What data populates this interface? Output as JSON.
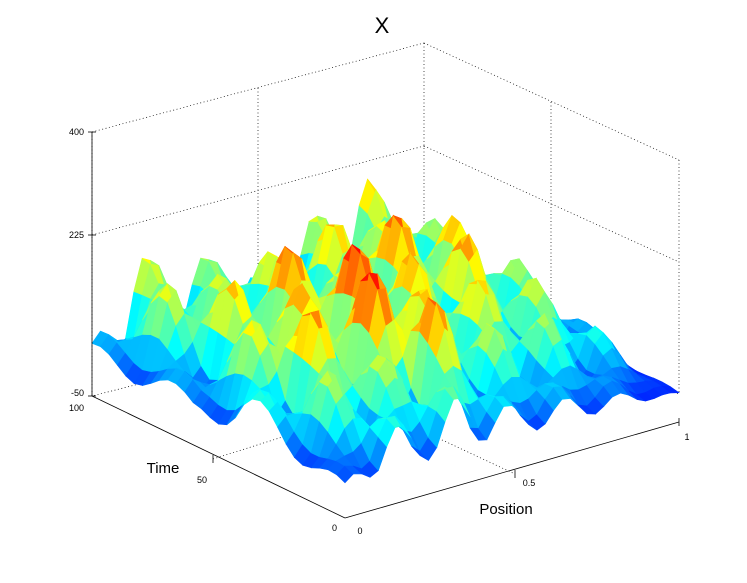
{
  "chart_data": {
    "type": "surface",
    "title": "X",
    "xlabel": "Position",
    "ylabel": "Time",
    "zlabel": "",
    "xlim": [
      0,
      1
    ],
    "ylim": [
      0,
      100
    ],
    "zlim": [
      -50,
      400
    ],
    "x_ticks": [
      "0",
      "0.5",
      "1"
    ],
    "y_ticks": [
      "0",
      "50",
      "100"
    ],
    "z_ticks": [
      "-50",
      "225",
      "400"
    ],
    "colormap": "jet",
    "grid": true,
    "position_samples": [
      0,
      0.125,
      0.25,
      0.375,
      0.5,
      0.625,
      0.75,
      0.875,
      1
    ],
    "time_samples": [
      100,
      80,
      60,
      40,
      20,
      0
    ],
    "values": [
      [
        40,
        190,
        110,
        150,
        70,
        140,
        180,
        190,
        20
      ],
      [
        60,
        210,
        160,
        200,
        120,
        250,
        160,
        170,
        30
      ],
      [
        30,
        180,
        220,
        260,
        170,
        230,
        230,
        190,
        40
      ],
      [
        90,
        250,
        190,
        300,
        210,
        200,
        190,
        150,
        50
      ],
      [
        60,
        200,
        160,
        280,
        150,
        170,
        150,
        120,
        20
      ],
      [
        10,
        90,
        70,
        120,
        60,
        50,
        40,
        20,
        0
      ]
    ]
  }
}
